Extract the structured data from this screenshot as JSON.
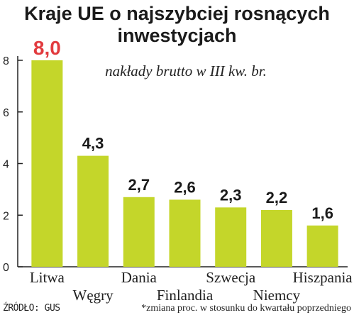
{
  "chart_data": {
    "type": "bar",
    "title_line1": "Kraje UE o najszybciej rosnących",
    "title_line2": "inwestycjach",
    "subtitle": "nakłady brutto w III kw. br.",
    "categories": [
      "Litwa",
      "Węgry",
      "Dania",
      "Finlandia",
      "Szwecja",
      "Niemcy",
      "Hiszpania"
    ],
    "values": [
      8.0,
      4.3,
      2.7,
      2.6,
      2.3,
      2.2,
      1.6
    ],
    "value_labels": [
      "8,0",
      "4,3",
      "2,7",
      "2,6",
      "2,3",
      "2,2",
      "1,6"
    ],
    "yticks": [
      "0",
      "2",
      "4",
      "6",
      "8"
    ],
    "ylim": [
      0,
      8
    ],
    "grid": false,
    "bar_color": "#c4d62a",
    "highlight_label_color": "#e23b3f",
    "label_color": "#1a1a1a"
  },
  "footer": {
    "source": "ŹRÓDŁO: GUS",
    "note": "*zmiana proc. w stosunku do kwartału poprzedniego"
  }
}
